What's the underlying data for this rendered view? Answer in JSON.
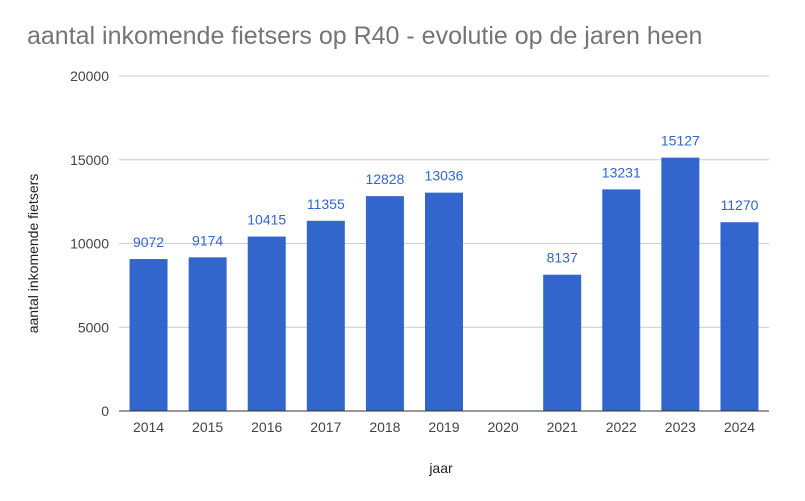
{
  "chart_data": {
    "type": "bar",
    "title": "aantal inkomende fietsers op R40 - evolutie op de jaren heen",
    "xlabel": "jaar",
    "ylabel": "aantal inkomende fietsers",
    "categories": [
      "2014",
      "2015",
      "2016",
      "2017",
      "2018",
      "2019",
      "2020",
      "2021",
      "2022",
      "2023",
      "2024"
    ],
    "values": [
      9072,
      9174,
      10415,
      11355,
      12828,
      13036,
      null,
      8137,
      13231,
      15127,
      11270
    ],
    "data_labels": [
      "9072",
      "9174",
      "10415",
      "11355",
      "12828",
      "13036",
      "",
      "8137",
      "13231",
      "15127",
      "11270"
    ],
    "ylim": [
      0,
      20000
    ],
    "yticks": [
      0,
      5000,
      10000,
      15000,
      20000
    ],
    "ytick_labels": [
      "0",
      "5000",
      "10000",
      "15000",
      "20000"
    ],
    "grid": true,
    "legend": "none",
    "colors": {
      "bar": "#3366cc",
      "data_label": "#3366cc",
      "grid": "#cccccc",
      "axis": "#333333",
      "title": "#757575"
    }
  }
}
